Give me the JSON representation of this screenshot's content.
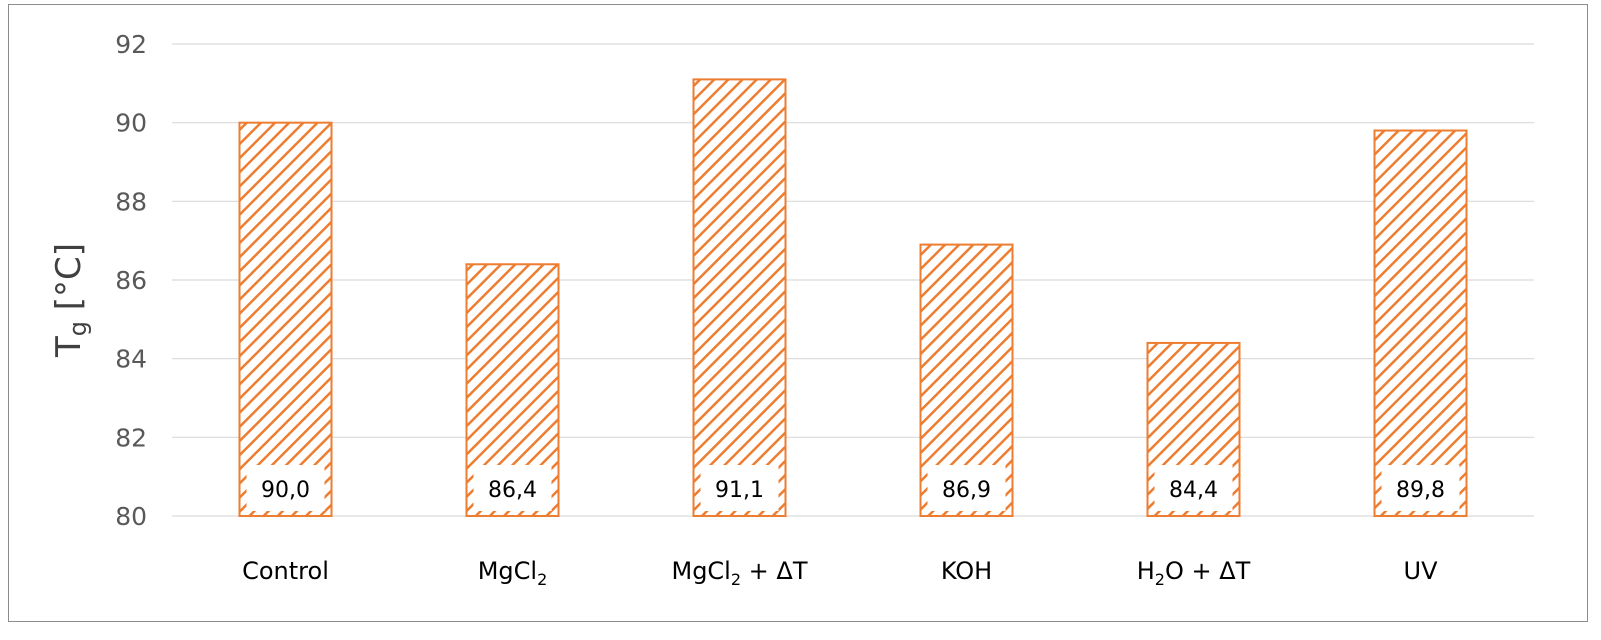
{
  "chart_data": {
    "type": "bar",
    "categories": [
      {
        "main": "Control",
        "sub": "",
        "rest": ""
      },
      {
        "main": "MgCl",
        "sub": "2",
        "rest": ""
      },
      {
        "main": "MgCl",
        "sub": "2",
        "rest": " + ΔT"
      },
      {
        "main": "KOH",
        "sub": "",
        "rest": ""
      },
      {
        "main": "H",
        "sub": "2",
        "rest": "O + ΔT"
      },
      {
        "main": "UV",
        "sub": "",
        "rest": ""
      }
    ],
    "values": [
      90.0,
      86.4,
      91.1,
      86.9,
      84.4,
      89.8
    ],
    "data_labels": [
      "90,0",
      "86,4",
      "91,1",
      "86,9",
      "84,4",
      "89,8"
    ],
    "ylabel": {
      "main": "T",
      "sub": "g",
      "rest": " [°C]"
    },
    "ylim": [
      80,
      92
    ],
    "yticks": [
      80,
      82,
      84,
      86,
      88,
      90,
      92
    ],
    "grid": true,
    "legend": "none",
    "bar_color": "#ED7D31",
    "bar_fill": "diagonal-hatch"
  }
}
